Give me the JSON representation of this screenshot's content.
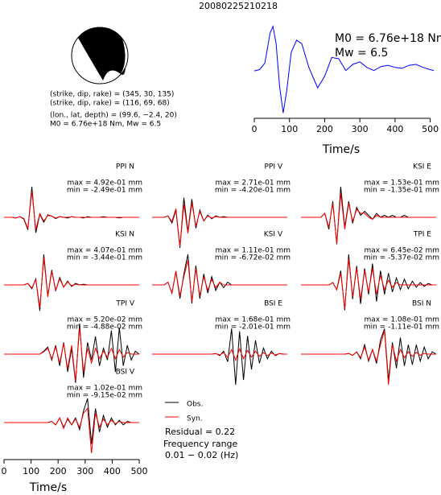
{
  "title": "20080225210218",
  "mechanism": {
    "lines": [
      "(strike, dip, rake) = (345, 30, 135)",
      "(strike, dip, rake) = (116, 69, 68)",
      "(lon., lat, depth) = (99.6, −2.4, 20)",
      "M0 = 6.76e+18 Nm, Mw = 6.5"
    ]
  },
  "chart_data": [
    {
      "type": "line",
      "color": "#0000ff",
      "x": [
        0,
        15,
        30,
        45,
        53,
        62,
        72,
        82,
        92,
        105,
        120,
        135,
        155,
        180,
        200,
        220,
        240,
        260,
        280,
        300,
        320,
        340,
        360,
        380,
        400,
        420,
        440,
        460,
        480,
        500,
        510
      ],
      "values": [
        -0.03,
        0.0,
        0.15,
        0.85,
        1.0,
        0.6,
        -0.4,
        -1.0,
        -0.5,
        0.4,
        0.68,
        0.6,
        0.05,
        -0.42,
        -0.15,
        0.28,
        0.25,
        -0.02,
        0.12,
        0.18,
        0.05,
        -0.02,
        0.07,
        0.1,
        0.05,
        0.03,
        0.1,
        0.12,
        0.05,
        0.0,
        -0.02
      ],
      "xlim": [
        0,
        510
      ],
      "ylim": [
        -1.05,
        1.05
      ],
      "xticks": [
        0,
        100,
        200,
        300,
        400,
        500
      ],
      "xlabel": "Time/s",
      "annotations": [
        "M0 = 6.76e+18 Nm",
        "Mw = 6.5"
      ]
    },
    {
      "type": "waveforms",
      "x": [
        0,
        15,
        30,
        45,
        60,
        75,
        90,
        105,
        120,
        135,
        150,
        165,
        180,
        195,
        210,
        225,
        240,
        255,
        270,
        285,
        300,
        315,
        330,
        345,
        360,
        375,
        390,
        405,
        420,
        435,
        450,
        465,
        480,
        495,
        510
      ],
      "xlim": [
        0,
        510
      ],
      "xticks": [
        0,
        100,
        200,
        300,
        400,
        500
      ],
      "xlabel": "Time/s",
      "legend": [
        {
          "name": "Obs.",
          "color": "#000000"
        },
        {
          "name": "Syn.",
          "color": "#ff0000"
        }
      ],
      "residual": "Residual = 0.22",
      "frequency": [
        "Frequency range",
        "0.01 − 0.02 (Hz)"
      ],
      "panels": [
        {
          "title": "PPI N",
          "max": "max = 4.92e-01 mm",
          "min": "min = -2.49e-01 mm",
          "obs": [
            0,
            0,
            0,
            -0.01,
            0.01,
            -0.03,
            -0.2,
            0.492,
            -0.249,
            0.05,
            -0.08,
            0.04,
            0.02,
            -0.02,
            0.01,
            0,
            -0.01,
            0.01,
            0,
            0,
            -0.01,
            0.01,
            0,
            0,
            0,
            0.01,
            0,
            0,
            0,
            -0.01,
            0,
            0,
            0,
            0,
            0
          ],
          "syn": [
            0,
            0,
            0,
            -0.01,
            0.01,
            -0.02,
            -0.18,
            0.42,
            -0.2,
            0.06,
            -0.06,
            0.03,
            0.02,
            -0.01,
            0.01,
            0,
            0,
            0.01,
            0,
            0,
            0,
            0,
            0,
            0,
            0,
            0,
            0,
            0,
            0,
            0,
            0,
            0,
            0,
            0,
            0
          ]
        },
        {
          "title": "PPI V",
          "max": "max = 2.71e-01 mm",
          "min": "min = -4.20e-01 mm",
          "obs": [
            0,
            0,
            0,
            0,
            0.02,
            -0.08,
            0.1,
            -0.42,
            0.271,
            -0.2,
            0.25,
            -0.15,
            0.1,
            -0.05,
            0.03,
            -0.02,
            0.02,
            0,
            0.01,
            0,
            0,
            0,
            0,
            0,
            0,
            0,
            0,
            0,
            0,
            0,
            0,
            0,
            0,
            0,
            0
          ],
          "syn": [
            0,
            0,
            0,
            0,
            0.02,
            -0.06,
            0.12,
            -0.4,
            0.18,
            -0.22,
            0.2,
            -0.12,
            0.08,
            -0.05,
            0.02,
            -0.01,
            0.01,
            0,
            0,
            0,
            0,
            0,
            0,
            0,
            0,
            0,
            0,
            0,
            0,
            0,
            0,
            0,
            0,
            0,
            0
          ]
        },
        {
          "title": "KSI E",
          "max": "max = 1.53e-01 mm",
          "min": "min = -1.35e-01 mm",
          "obs": [
            0,
            0,
            0,
            0,
            0,
            0,
            0.02,
            -0.06,
            0.08,
            -0.135,
            0.153,
            -0.05,
            0.08,
            -0.03,
            0.05,
            0.01,
            0.03,
            0.01,
            -0.01,
            0.02,
            0,
            0.01,
            0,
            0.01,
            0,
            0,
            0.01,
            0,
            0,
            0,
            0,
            0,
            0,
            0,
            0
          ],
          "syn": [
            0,
            0,
            0,
            0,
            0,
            0,
            0.02,
            -0.05,
            0.07,
            -0.13,
            0.12,
            -0.06,
            0.07,
            -0.02,
            0.04,
            0.02,
            0.02,
            0,
            -0.01,
            0.01,
            0,
            0,
            0,
            0,
            0,
            0,
            0,
            0,
            0,
            0,
            0,
            0,
            0,
            0,
            0
          ]
        },
        {
          "title": "KSI N",
          "max": "max = 4.07e-01 mm",
          "min": "min = -3.44e-01 mm",
          "obs": [
            0,
            0,
            0,
            0,
            0,
            0,
            0.02,
            -0.05,
            0.08,
            -0.344,
            0.407,
            -0.15,
            0.2,
            -0.08,
            0.1,
            -0.03,
            0.05,
            -0.02,
            0.02,
            0,
            0.01,
            0,
            0,
            0,
            0,
            0,
            0,
            0,
            0,
            0,
            0,
            0,
            0,
            0,
            0
          ],
          "syn": [
            0,
            0,
            0,
            0,
            0,
            0,
            0.02,
            -0.04,
            0.07,
            -0.3,
            0.36,
            -0.16,
            0.18,
            -0.07,
            0.08,
            -0.03,
            0.04,
            -0.01,
            0.01,
            0,
            0,
            0,
            0,
            0,
            0,
            0,
            0,
            0,
            0,
            0,
            0,
            0,
            0,
            0,
            0
          ]
        },
        {
          "title": "KSI V",
          "max": "max = 1.11e-01 mm",
          "min": "min = -6.72e-02 mm",
          "obs": [
            0,
            0,
            0,
            0,
            0.01,
            -0.03,
            0.05,
            -0.05,
            0.04,
            0.111,
            -0.0672,
            0.07,
            -0.05,
            0.04,
            -0.03,
            0.03,
            -0.02,
            0.01,
            -0.01,
            0.01,
            0,
            0,
            0,
            0,
            0,
            0,
            0,
            0,
            0,
            0,
            0,
            0,
            0,
            0,
            0
          ],
          "syn": [
            0,
            0,
            0,
            0,
            0.01,
            -0.03,
            0.05,
            -0.04,
            0.03,
            0.09,
            -0.06,
            0.06,
            -0.04,
            0.03,
            -0.02,
            0.02,
            -0.01,
            0.01,
            0,
            0,
            0,
            0,
            0,
            0,
            0,
            0,
            0,
            0,
            0,
            0,
            0,
            0,
            0,
            0,
            0
          ]
        },
        {
          "title": "TPI E",
          "max": "max = 6.45e-02 mm",
          "min": "min = -5.37e-02 mm",
          "obs": [
            0,
            0,
            0,
            0,
            0,
            0,
            0,
            0,
            0.005,
            -0.01,
            0.03,
            -0.0537,
            0.0645,
            -0.03,
            0.04,
            -0.04,
            0.035,
            -0.02,
            0.045,
            -0.035,
            0.03,
            -0.02,
            0.025,
            -0.015,
            0.015,
            -0.01,
            0.012,
            -0.008,
            0.008,
            -0.005,
            0.005,
            -0.003,
            0.003,
            0,
            0
          ],
          "syn": [
            0,
            0,
            0,
            0,
            0,
            0,
            0,
            0,
            0.005,
            -0.01,
            0.025,
            -0.05,
            0.055,
            -0.025,
            0.035,
            -0.03,
            0.03,
            -0.015,
            0.035,
            -0.02,
            0.02,
            -0.01,
            0.01,
            -0.005,
            0.005,
            0,
            0,
            0,
            0,
            0,
            0,
            0,
            0,
            0,
            0
          ]
        },
        {
          "title": "TPI V",
          "max": "max = 5.20e-02 mm",
          "min": "min = -4.88e-02 mm",
          "obs": [
            0,
            0,
            0,
            0,
            0,
            0,
            0,
            0,
            0,
            0,
            0.005,
            0.012,
            -0.01,
            0.015,
            -0.02,
            0.02,
            -0.03,
            0.01,
            -0.0488,
            0.052,
            -0.04,
            0.02,
            -0.01,
            0.03,
            -0.02,
            0.01,
            -0.01,
            0.04,
            -0.03,
            0.045,
            -0.02,
            0.015,
            -0.01,
            0.005,
            0
          ],
          "syn": [
            0,
            0,
            0,
            0,
            0,
            0,
            0,
            0,
            0,
            0,
            0.004,
            0.01,
            -0.008,
            0.012,
            -0.015,
            0.018,
            -0.025,
            0.015,
            -0.045,
            0.045,
            -0.03,
            0.01,
            -0.015,
            0.01,
            -0.008,
            0.005,
            -0.005,
            0.01,
            -0.008,
            0.008,
            -0.005,
            0.003,
            0,
            0,
            0
          ]
        },
        {
          "title": "BSI E",
          "max": "max = 1.68e-01 mm",
          "min": "min = -2.01e-01 mm",
          "obs": [
            0,
            0,
            0,
            0,
            0,
            0,
            0,
            0,
            0,
            0,
            0,
            0,
            0,
            0,
            0,
            0,
            0.005,
            -0.01,
            0.02,
            -0.05,
            0.168,
            -0.201,
            0.15,
            -0.17,
            0.12,
            -0.1,
            0.09,
            -0.06,
            0.04,
            -0.03,
            0.02,
            -0.01,
            0.005,
            0,
            0
          ],
          "syn": [
            0,
            0,
            0,
            0,
            0,
            0,
            0,
            0,
            0,
            0,
            0,
            0,
            0,
            0,
            0,
            0,
            0.003,
            -0.005,
            0.01,
            -0.02,
            0.03,
            -0.04,
            0.035,
            -0.03,
            0.025,
            -0.02,
            0.02,
            -0.015,
            0.01,
            -0.01,
            0.008,
            -0.005,
            0.003,
            0,
            0
          ]
        },
        {
          "title": "BSI N",
          "max": "max = 1.08e-01 mm",
          "min": "min = -1.11e-01 mm",
          "obs": [
            0,
            0,
            0,
            0,
            0,
            0,
            0,
            0,
            0,
            0,
            0,
            0,
            0.003,
            -0.005,
            0.01,
            -0.02,
            0.04,
            -0.03,
            0.02,
            -0.04,
            0.06,
            0.108,
            -0.111,
            0.05,
            -0.06,
            0.07,
            -0.05,
            0.04,
            -0.045,
            0.04,
            -0.03,
            0.03,
            -0.02,
            0.01,
            0
          ],
          "syn": [
            0,
            0,
            0,
            0,
            0,
            0,
            0,
            0,
            0,
            0,
            0,
            0,
            0.003,
            -0.005,
            0.01,
            -0.015,
            0.03,
            -0.025,
            0.02,
            -0.03,
            0.04,
            0.1,
            -0.13,
            0.04,
            -0.03,
            0.02,
            -0.015,
            0.01,
            -0.01,
            0.008,
            -0.005,
            0.003,
            0,
            0,
            0
          ]
        },
        {
          "title": "BSI V",
          "max": "max = 1.02e-01 mm",
          "min": "min = -9.15e-02 mm",
          "obs": [
            0,
            0,
            0,
            0,
            0,
            0,
            0,
            0,
            0,
            0,
            0,
            0,
            0.005,
            -0.01,
            0.02,
            -0.02,
            0.015,
            -0.01,
            0.02,
            -0.03,
            0.05,
            0.102,
            -0.0915,
            0.06,
            -0.04,
            0.03,
            -0.02,
            0.02,
            -0.01,
            0.01,
            -0.01,
            0.005,
            0,
            0,
            0
          ],
          "syn": [
            0,
            0,
            0,
            0,
            0,
            0,
            0,
            0,
            0,
            0,
            0,
            0,
            0.005,
            -0.01,
            0.02,
            -0.025,
            0.02,
            -0.01,
            0.015,
            -0.02,
            0.04,
            0.06,
            -0.13,
            0.04,
            -0.02,
            0.015,
            -0.01,
            0.01,
            -0.005,
            0.005,
            0,
            0,
            0,
            0,
            0
          ]
        }
      ]
    }
  ]
}
